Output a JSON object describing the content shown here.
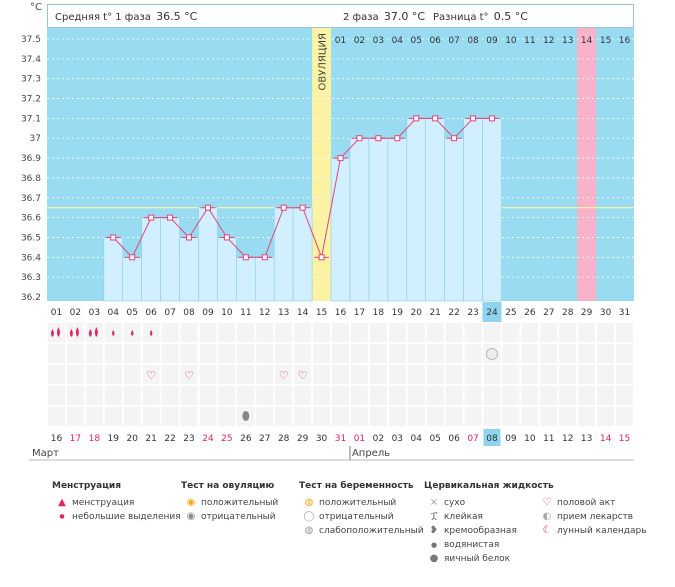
{
  "y_unit": "°C",
  "header": {
    "phase1_label": "Средняя t° 1 фаза",
    "phase1_value": "36.5 °C",
    "phase2_label": "2 фаза",
    "phase2_value": "37.0 °C",
    "diff_label": "Разница t°",
    "diff_value": "0.5 °C"
  },
  "ovulation_label": "ОВУЛЯЦИЯ",
  "colors": {
    "plot_bg": "#99dcf2",
    "bar_fill": "#d1efff",
    "line": "#e0457b",
    "ovulation": "#fbf3a3",
    "highlight_day": "#f8b3c8",
    "coverline": "#fff9a8",
    "weekend": "#e0245e",
    "selected": "#8fd3ee"
  },
  "chart_data": {
    "type": "line",
    "ylabel": "°C",
    "ylim": [
      36.2,
      37.5
    ],
    "y_ticks": [
      "36.2",
      "36.3",
      "36.4",
      "36.5",
      "36.6",
      "36.7",
      "36.8",
      "36.9",
      "37",
      "37.1",
      "37.2",
      "37.3",
      "37.4",
      "37.5"
    ],
    "coverline": 36.65,
    "cycle_days": [
      "01",
      "02",
      "03",
      "04",
      "05",
      "06",
      "07",
      "08",
      "09",
      "10",
      "11",
      "12",
      "13",
      "14",
      "15",
      "16",
      "17",
      "18",
      "19",
      "20",
      "21",
      "22",
      "23",
      "24",
      "25",
      "26",
      "27",
      "28",
      "29",
      "30",
      "31"
    ],
    "post_ovulation_days": [
      "01",
      "02",
      "03",
      "04",
      "05",
      "06",
      "07",
      "08",
      "09",
      "10",
      "11",
      "12",
      "13",
      "14",
      "15",
      "16"
    ],
    "ovulation_day": "15",
    "highlight_day": "29",
    "selected_day": "24",
    "series": [
      {
        "values": [
          null,
          null,
          null,
          36.5,
          36.4,
          36.6,
          36.6,
          36.5,
          36.65,
          36.5,
          36.4,
          36.4,
          36.65,
          36.65,
          36.4,
          36.9,
          37.0,
          37.0,
          37.0,
          37.1,
          37.1,
          37.0,
          37.1,
          37.1,
          null,
          null,
          null,
          null,
          null,
          null,
          null
        ]
      }
    ],
    "calendar_dates": [
      "16",
      "17",
      "18",
      "19",
      "20",
      "21",
      "22",
      "23",
      "24",
      "25",
      "26",
      "27",
      "28",
      "29",
      "30",
      "31",
      "01",
      "02",
      "03",
      "04",
      "05",
      "06",
      "07",
      "08",
      "09",
      "10",
      "11",
      "12",
      "13",
      "14",
      "15"
    ],
    "weekend_flags": [
      false,
      true,
      true,
      false,
      false,
      false,
      false,
      false,
      true,
      true,
      false,
      false,
      false,
      false,
      false,
      true,
      true,
      false,
      false,
      false,
      false,
      false,
      true,
      false,
      false,
      false,
      false,
      false,
      false,
      true,
      true
    ],
    "month_labels": [
      {
        "label": "Март",
        "start": 0
      },
      {
        "label": "Апрель",
        "start": 16
      }
    ],
    "menstruation": [
      "heavy",
      "heavy",
      "heavy",
      "light",
      "light",
      "light",
      null,
      null,
      null,
      null,
      null,
      null,
      null,
      null,
      null,
      null,
      null,
      null,
      null,
      null,
      null,
      null,
      null,
      null,
      null,
      null,
      null,
      null,
      null,
      null,
      null
    ],
    "intercourse_days": [
      6,
      8,
      13,
      14
    ],
    "egg_white_days": [
      11
    ],
    "pregnancy_negative_days": [
      24
    ]
  },
  "legend": {
    "menstruation": {
      "title": "Менструация",
      "items": [
        "менструация",
        "небольшие выделения"
      ]
    },
    "ovulation_test": {
      "title": "Тест на овуляцию",
      "items": [
        "положительный",
        "отрицательный"
      ]
    },
    "pregnancy_test": {
      "title": "Тест на беременность",
      "items": [
        "положительный",
        "отрицательный",
        "слабоположительный"
      ]
    },
    "cervical": {
      "title": "Цервикальная жидкость",
      "items": [
        "сухо",
        "клейкая",
        "кремообразная",
        "водянистая",
        "яичный белок"
      ]
    },
    "other": {
      "items": [
        "половой акт",
        "прием лекарств",
        "лунный календарь"
      ]
    }
  }
}
